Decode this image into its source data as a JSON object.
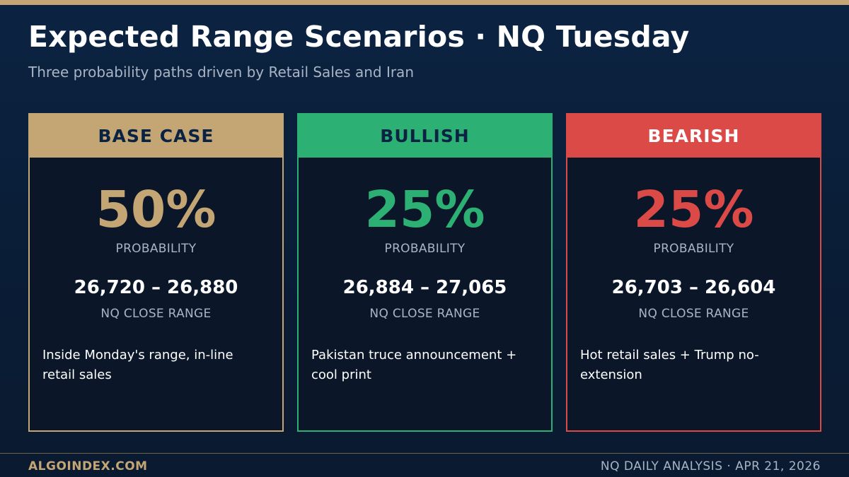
{
  "header": {
    "title": "Expected Range Scenarios  ·  NQ Tuesday",
    "subtitle": "Three probability paths driven by Retail Sales and Iran"
  },
  "colors": {
    "accent_gold": "#c4a574",
    "bullish_green": "#2db073",
    "bearish_red": "#db4a47",
    "navy": "#0b2342",
    "muted_text": "#a9b4c4"
  },
  "scenarios": [
    {
      "name": "BASE CASE",
      "probability": "50%",
      "probability_label": "PROBABILITY",
      "range": "26,720 – 26,880",
      "range_label": "NQ CLOSE RANGE",
      "description": "Inside Monday's range, in-line retail sales"
    },
    {
      "name": "BULLISH",
      "probability": "25%",
      "probability_label": "PROBABILITY",
      "range": "26,884 – 27,065",
      "range_label": "NQ CLOSE RANGE",
      "description": "Pakistan truce announcement + cool print"
    },
    {
      "name": "BEARISH",
      "probability": "25%",
      "probability_label": "PROBABILITY",
      "range": "26,703 – 26,604",
      "range_label": "NQ CLOSE RANGE",
      "description": "Hot retail sales + Trump no-extension"
    }
  ],
  "footer": {
    "brand": "ALGOINDEX.COM",
    "info": "NQ DAILY ANALYSIS  ·  APR 21, 2026"
  }
}
